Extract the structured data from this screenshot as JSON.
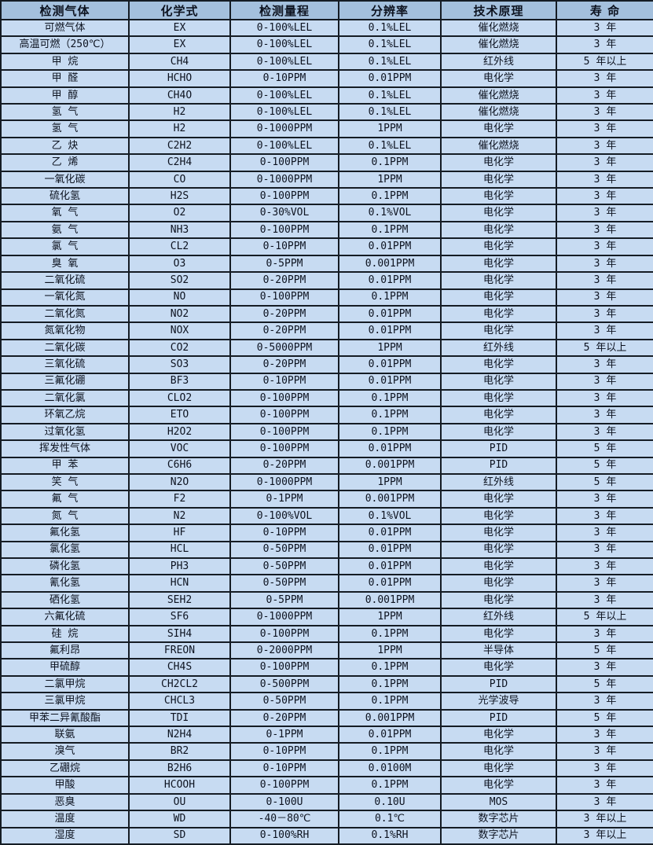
{
  "table": {
    "columns": [
      "检测气体",
      "化学式",
      "检测量程",
      "分辨率",
      "技术原理",
      "寿 命"
    ],
    "rows": [
      [
        "可燃气体",
        "EX",
        "0-100%LEL",
        "0.1%LEL",
        "催化燃烧",
        "3 年"
      ],
      [
        "高温可燃（250℃）",
        "EX",
        "0-100%LEL",
        "0.1%LEL",
        "催化燃烧",
        "3 年"
      ],
      [
        "甲 烷",
        "CH4",
        "0-100%LEL",
        "0.1%LEL",
        "红外线",
        "5 年以上"
      ],
      [
        "甲 醛",
        "HCHO",
        "0-10PPM",
        "0.01PPM",
        "电化学",
        "3 年"
      ],
      [
        "甲 醇",
        "CH4O",
        "0-100%LEL",
        "0.1%LEL",
        "催化燃烧",
        "3 年"
      ],
      [
        "氢 气",
        "H2",
        "0-100%LEL",
        "0.1%LEL",
        "催化燃烧",
        "3 年"
      ],
      [
        "氢 气",
        "H2",
        "0-1000PPM",
        "1PPM",
        "电化学",
        "3 年"
      ],
      [
        "乙 炔",
        "C2H2",
        "0-100%LEL",
        "0.1%LEL",
        "催化燃烧",
        "3 年"
      ],
      [
        "乙 烯",
        "C2H4",
        "0-100PPM",
        "0.1PPM",
        "电化学",
        "3 年"
      ],
      [
        "一氧化碳",
        "CO",
        "0-1000PPM",
        "1PPM",
        "电化学",
        "3 年"
      ],
      [
        "硫化氢",
        "H2S",
        "0-100PPM",
        "0.1PPM",
        "电化学",
        "3 年"
      ],
      [
        "氧 气",
        "O2",
        "0-30%VOL",
        "0.1%VOL",
        "电化学",
        "3 年"
      ],
      [
        "氨 气",
        "NH3",
        "0-100PPM",
        "0.1PPM",
        "电化学",
        "3 年"
      ],
      [
        "氯 气",
        "CL2",
        "0-10PPM",
        "0.01PPM",
        "电化学",
        "3 年"
      ],
      [
        "臭 氧",
        "O3",
        "0-5PPM",
        "0.001PPM",
        "电化学",
        "3 年"
      ],
      [
        "二氧化硫",
        "SO2",
        "0-20PPM",
        "0.01PPM",
        "电化学",
        "3 年"
      ],
      [
        "一氧化氮",
        "NO",
        "0-100PPM",
        "0.1PPM",
        "电化学",
        "3 年"
      ],
      [
        "二氧化氮",
        "NO2",
        "0-20PPM",
        "0.01PPM",
        "电化学",
        "3 年"
      ],
      [
        "氮氧化物",
        "NOX",
        "0-20PPM",
        "0.01PPM",
        "电化学",
        "3 年"
      ],
      [
        "二氧化碳",
        "CO2",
        "0-5000PPM",
        "1PPM",
        "红外线",
        "5 年以上"
      ],
      [
        "三氧化硫",
        "SO3",
        "0-20PPM",
        "0.01PPM",
        "电化学",
        "3 年"
      ],
      [
        "三氟化硼",
        "BF3",
        "0-10PPM",
        "0.01PPM",
        "电化学",
        "3 年"
      ],
      [
        "二氧化氯",
        "CLO2",
        "0-100PPM",
        "0.1PPM",
        "电化学",
        "3 年"
      ],
      [
        "环氧乙烷",
        "ETO",
        "0-100PPM",
        "0.1PPM",
        "电化学",
        "3 年"
      ],
      [
        "过氧化氢",
        "H2O2",
        "0-100PPM",
        "0.1PPM",
        "电化学",
        "3 年"
      ],
      [
        "挥发性气体",
        "VOC",
        "0-100PPM",
        "0.01PPM",
        "PID",
        "5 年"
      ],
      [
        "甲 苯",
        "C6H6",
        "0-20PPM",
        "0.001PPM",
        "PID",
        "5 年"
      ],
      [
        "笑 气",
        "N2O",
        "0-1000PPM",
        "1PPM",
        "红外线",
        "5 年"
      ],
      [
        "氟 气",
        "F2",
        "0-1PPM",
        "0.001PPM",
        "电化学",
        "3 年"
      ],
      [
        "氮 气",
        "N2",
        "0-100%VOL",
        "0.1%VOL",
        "电化学",
        "3 年"
      ],
      [
        "氟化氢",
        "HF",
        "0-10PPM",
        "0.01PPM",
        "电化学",
        "3 年"
      ],
      [
        "氯化氢",
        "HCL",
        "0-50PPM",
        "0.01PPM",
        "电化学",
        "3 年"
      ],
      [
        "磷化氢",
        "PH3",
        "0-50PPM",
        "0.01PPM",
        "电化学",
        "3 年"
      ],
      [
        "氰化氢",
        "HCN",
        "0-50PPM",
        "0.01PPM",
        "电化学",
        "3 年"
      ],
      [
        "硒化氢",
        "SEH2",
        "0-5PPM",
        "0.001PPM",
        "电化学",
        "3 年"
      ],
      [
        "六氟化硫",
        "SF6",
        "0-1000PPM",
        "1PPM",
        "红外线",
        "5 年以上"
      ],
      [
        "硅 烷",
        "SIH4",
        "0-100PPM",
        "0.1PPM",
        "电化学",
        "3 年"
      ],
      [
        "氟利昂",
        "FREON",
        "0-2000PPM",
        "1PPM",
        "半导体",
        "5 年"
      ],
      [
        "甲硫醇",
        "CH4S",
        "0-100PPM",
        "0.1PPM",
        "电化学",
        "3 年"
      ],
      [
        "二氯甲烷",
        "CH2CL2",
        "0-500PPM",
        "0.1PPM",
        "PID",
        "5 年"
      ],
      [
        "三氯甲烷",
        "CHCL3",
        "0-50PPM",
        "0.1PPM",
        "光学波导",
        "3 年"
      ],
      [
        "甲苯二异氰酸酯",
        "TDI",
        "0-20PPM",
        "0.001PPM",
        "PID",
        "5 年"
      ],
      [
        "联氨",
        "N2H4",
        "0-1PPM",
        "0.01PPM",
        "电化学",
        "3 年"
      ],
      [
        "溴气",
        "BR2",
        "0-10PPM",
        "0.1PPM",
        "电化学",
        "3 年"
      ],
      [
        "乙硼烷",
        "B2H6",
        "0-10PPM",
        "0.0100M",
        "电化学",
        "3 年"
      ],
      [
        "甲酸",
        "HCOOH",
        "0-100PPM",
        "0.1PPM",
        "电化学",
        "3 年"
      ],
      [
        "恶臭",
        "OU",
        "0-100U",
        "0.10U",
        "MOS",
        "3 年"
      ],
      [
        "温度",
        "WD",
        "-40－80℃",
        "0.1℃",
        "数字芯片",
        "3 年以上"
      ],
      [
        "湿度",
        "SD",
        "0-100%RH",
        "0.1%RH",
        "数字芯片",
        "3 年以上"
      ]
    ]
  },
  "colors": {
    "header_bg": "#a4c0dd",
    "row_bg": "#c7dbf2",
    "border": "#151c24",
    "text": "#0d1320"
  }
}
